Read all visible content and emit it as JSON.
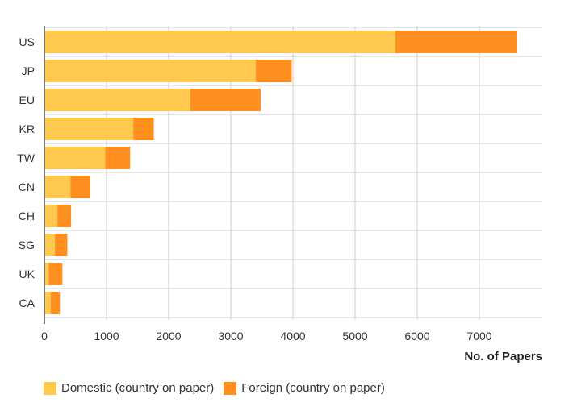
{
  "colors": {
    "domestic": "#FFC94F",
    "foreign": "#FF8F1F",
    "grid": "#cccccc",
    "axis": "#555555"
  },
  "legend": {
    "domestic_label": "Domestic (country on paper)",
    "foreign_label": "Foreign (country on paper)"
  },
  "chart_data": {
    "type": "bar",
    "orientation": "horizontal",
    "stacked": true,
    "categories": [
      "US",
      "JP",
      "EU",
      "KR",
      "TW",
      "CN",
      "CH",
      "SG",
      "UK",
      "CA"
    ],
    "series": [
      {
        "name": "Domestic (country on paper)",
        "values": [
          5650,
          3400,
          2350,
          1430,
          980,
          420,
          210,
          170,
          70,
          100
        ]
      },
      {
        "name": "Foreign (country on paper)",
        "values": [
          1950,
          580,
          1130,
          330,
          400,
          320,
          220,
          200,
          220,
          150
        ]
      }
    ],
    "xlabel": "No. of Papers",
    "ylabel": "",
    "xticks": [
      "0",
      "1000",
      "2000",
      "3000",
      "4000",
      "5000",
      "6000",
      "7000"
    ],
    "xlim": [
      0,
      8000
    ],
    "grid": true,
    "legend_position": "bottom-left"
  }
}
